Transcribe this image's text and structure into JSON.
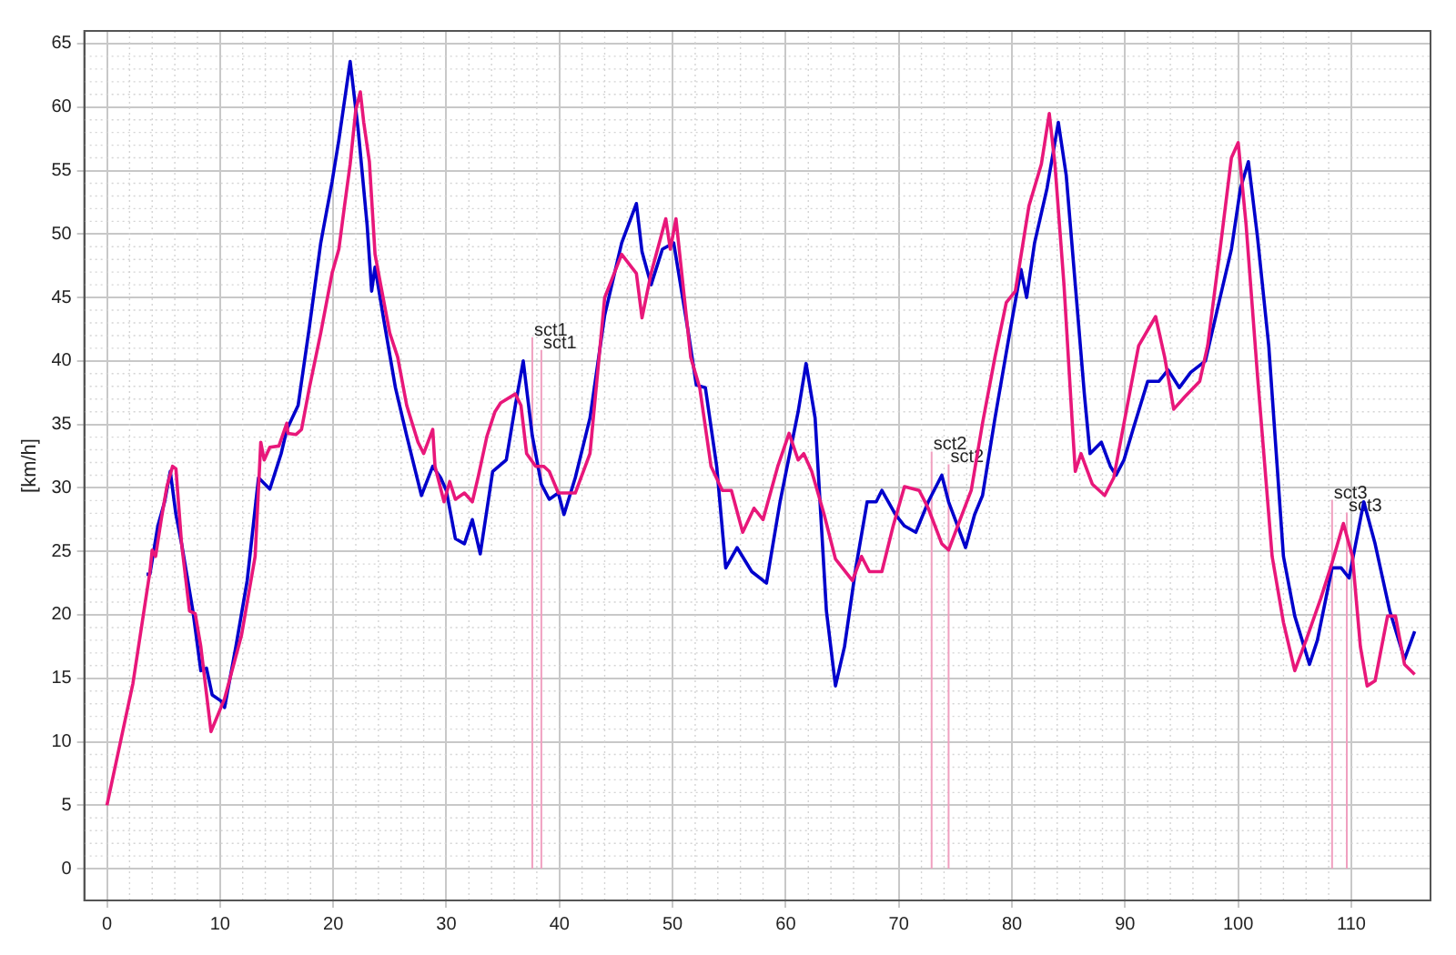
{
  "chart_data": {
    "type": "line",
    "ylabel": "[km/h]",
    "xlim": [
      -2,
      117
    ],
    "ylim": [
      -2.5,
      66
    ],
    "xticks": [
      0,
      10,
      20,
      30,
      40,
      50,
      60,
      70,
      80,
      90,
      100,
      110
    ],
    "yticks": [
      0,
      5,
      10,
      15,
      20,
      25,
      30,
      35,
      40,
      45,
      50,
      55,
      60,
      65
    ],
    "grid": true,
    "legend": false,
    "marker": "none",
    "line_style": "solid",
    "series": [
      {
        "color": "#e8177a",
        "x": [
          0,
          2.3,
          3.8,
          4.0,
          4.3,
          4.8,
          5.3,
          5.8,
          6.1,
          6.6,
          7.3,
          7.8,
          8.3,
          9.2,
          10.4,
          11.9,
          13.1,
          13.6,
          13.9,
          14.4,
          15.2,
          15.9,
          16.0,
          16.7,
          17.2,
          17.9,
          18.9,
          19.9,
          20.5,
          21.0,
          21.5,
          22.0,
          22.4,
          22.7,
          23.2,
          23.7,
          24.2,
          25.0,
          25.7,
          26.5,
          27.5,
          28.0,
          28.8,
          29.0,
          29.8,
          30.3,
          30.8,
          31.6,
          32.3,
          32.8,
          33.6,
          34.3,
          34.8,
          36.1,
          36.6,
          37.1,
          37.9,
          38.6,
          39.1,
          39.9,
          41.4,
          42.7,
          44.0,
          45.5,
          46.8,
          47.3,
          48.1,
          49.4,
          49.8,
          50.3,
          51.6,
          52.4,
          53.4,
          54.4,
          55.2,
          56.2,
          57.2,
          58.0,
          59.3,
          60.3,
          61.1,
          61.6,
          62.3,
          63.4,
          64.4,
          65.9,
          66.7,
          67.4,
          68.5,
          69.5,
          70.5,
          71.8,
          72.6,
          73.8,
          74.4,
          75.2,
          76.4,
          77.4,
          78.5,
          79.5,
          80.3,
          81.5,
          82.6,
          83.3,
          83.8,
          84.6,
          85.4,
          85.6,
          86.1,
          87.1,
          88.2,
          89.0,
          90.2,
          91.2,
          92.7,
          93.5,
          94.3,
          95.3,
          96.6,
          97.3,
          98.4,
          99.4,
          100.0,
          100.7,
          101.7,
          103.0,
          104.0,
          105.0,
          106.0,
          107.3,
          108.3,
          109.3,
          110.1,
          110.8,
          111.4,
          112.1,
          113.2,
          113.9,
          114.7,
          115.6
        ],
        "values": [
          5.0,
          14.6,
          23.4,
          25.1,
          24.6,
          27.5,
          30.1,
          31.7,
          31.5,
          25.6,
          20.3,
          20.1,
          17.5,
          10.8,
          13.4,
          18.4,
          24.6,
          33.6,
          32.2,
          33.2,
          33.3,
          35.1,
          34.3,
          34.2,
          34.6,
          37.9,
          42.2,
          46.9,
          48.8,
          52.2,
          55.5,
          59.8,
          61.2,
          58.8,
          55.7,
          48.4,
          46.0,
          42.2,
          40.3,
          36.5,
          33.6,
          32.7,
          34.6,
          31.7,
          28.9,
          30.5,
          29.1,
          29.6,
          28.9,
          30.8,
          34.1,
          36.0,
          36.7,
          37.4,
          36.5,
          32.7,
          31.7,
          31.7,
          31.3,
          29.6,
          29.6,
          32.7,
          45.0,
          48.4,
          46.9,
          43.4,
          46.9,
          51.2,
          48.8,
          51.2,
          40.3,
          37.9,
          31.7,
          29.8,
          29.8,
          26.5,
          28.4,
          27.5,
          31.7,
          34.3,
          32.2,
          32.7,
          31.3,
          27.9,
          24.4,
          22.7,
          24.6,
          23.4,
          23.4,
          27.0,
          30.1,
          29.8,
          28.4,
          25.6,
          25.1,
          27.0,
          29.8,
          35.1,
          40.3,
          44.6,
          45.5,
          52.2,
          55.5,
          59.5,
          55.5,
          46.0,
          34.1,
          31.3,
          32.7,
          30.3,
          29.4,
          30.8,
          36.5,
          41.2,
          43.5,
          40.3,
          36.2,
          37.2,
          38.4,
          41.2,
          48.8,
          56.0,
          57.2,
          50.7,
          38.9,
          24.6,
          19.4,
          15.6,
          18.0,
          21.3,
          24.1,
          27.2,
          24.6,
          17.5,
          14.4,
          14.8,
          19.9,
          19.9,
          16.1,
          15.3
        ]
      },
      {
        "color": "#0000cc",
        "x": [
          3.5,
          3.8,
          4.5,
          5.1,
          5.6,
          6.1,
          6.6,
          7.6,
          8.3,
          8.8,
          9.3,
          10.1,
          10.4,
          11.4,
          12.4,
          13.4,
          14.4,
          15.4,
          15.9,
          16.9,
          17.9,
          18.9,
          19.9,
          20.5,
          21.5,
          22.2,
          23.0,
          23.4,
          23.7,
          24.5,
          25.5,
          26.5,
          27.8,
          28.8,
          29.5,
          30.0,
          30.8,
          31.6,
          32.3,
          33.0,
          34.1,
          35.3,
          36.1,
          36.8,
          37.6,
          38.4,
          39.1,
          39.9,
          40.4,
          41.4,
          42.7,
          44.0,
          45.5,
          46.8,
          47.3,
          48.1,
          49.1,
          50.1,
          51.4,
          52.1,
          52.9,
          53.9,
          54.7,
          55.7,
          57.0,
          58.3,
          59.5,
          61.1,
          61.8,
          62.6,
          63.6,
          64.4,
          65.2,
          66.2,
          67.2,
          68.0,
          68.5,
          69.7,
          70.5,
          71.5,
          72.6,
          73.8,
          74.4,
          75.2,
          75.9,
          76.7,
          77.4,
          78.5,
          79.7,
          80.8,
          81.3,
          82.0,
          83.1,
          84.1,
          84.8,
          85.6,
          86.4,
          86.9,
          87.9,
          88.7,
          89.2,
          89.9,
          90.7,
          92.0,
          93.0,
          93.8,
          94.8,
          95.8,
          97.1,
          98.4,
          99.4,
          100.2,
          100.9,
          101.7,
          102.7,
          104.0,
          105.0,
          106.3,
          107.0,
          108.3,
          109.1,
          109.8,
          111.1,
          112.1,
          113.4,
          114.7,
          115.6
        ],
        "values": [
          23.2,
          23.2,
          27.0,
          28.9,
          31.3,
          27.9,
          25.6,
          20.3,
          15.6,
          15.8,
          13.7,
          13.2,
          12.7,
          17.5,
          22.7,
          30.8,
          29.9,
          32.7,
          34.6,
          36.5,
          42.7,
          49.3,
          54.1,
          57.4,
          63.6,
          58.3,
          50.7,
          45.5,
          47.4,
          43.1,
          37.9,
          34.1,
          29.4,
          31.7,
          30.8,
          29.8,
          26.0,
          25.6,
          27.5,
          24.8,
          31.3,
          32.2,
          36.5,
          40.0,
          34.1,
          30.3,
          29.1,
          29.6,
          27.9,
          30.8,
          35.5,
          43.6,
          49.3,
          52.4,
          48.6,
          46.0,
          48.8,
          49.3,
          42.2,
          38.1,
          37.9,
          31.7,
          23.7,
          25.3,
          23.4,
          22.5,
          28.9,
          36.0,
          39.8,
          35.5,
          20.3,
          14.4,
          17.5,
          23.7,
          28.9,
          28.9,
          29.8,
          27.9,
          27.0,
          26.5,
          28.9,
          31.0,
          28.9,
          27.0,
          25.3,
          27.9,
          29.4,
          35.5,
          41.7,
          47.2,
          45.0,
          49.3,
          53.6,
          58.8,
          54.6,
          46.0,
          37.4,
          32.7,
          33.6,
          31.7,
          31.0,
          32.2,
          34.6,
          38.4,
          38.4,
          39.3,
          37.9,
          39.1,
          40.0,
          45.0,
          48.8,
          53.6,
          55.7,
          49.8,
          41.2,
          24.6,
          19.9,
          16.1,
          18.0,
          23.7,
          23.7,
          22.9,
          28.9,
          25.6,
          20.3,
          16.5,
          18.7
        ]
      }
    ],
    "ref_lines": [
      {
        "axis": "x",
        "value": 37.6,
        "color": "#f0a0c0",
        "label": "sct1"
      },
      {
        "axis": "x",
        "value": 38.4,
        "color": "#f0a0c0",
        "label": "sct1"
      },
      {
        "axis": "x",
        "value": 72.9,
        "color": "#f0a0c0",
        "label": "sct2"
      },
      {
        "axis": "x",
        "value": 74.4,
        "color": "#f0a0c0",
        "label": "sct2"
      },
      {
        "axis": "x",
        "value": 108.3,
        "color": "#f0a0c0",
        "label": "sct3"
      },
      {
        "axis": "x",
        "value": 109.6,
        "color": "#f0a0c0",
        "label": "sct3"
      }
    ]
  }
}
